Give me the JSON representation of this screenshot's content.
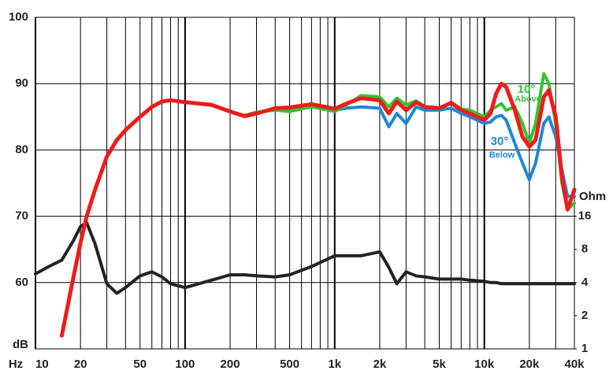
{
  "chart_data": {
    "type": "line",
    "x_label": "Hz",
    "y_label": "dB",
    "y2_label": "Ohm",
    "xscale": "log",
    "y2scale": "log",
    "grid": true,
    "xlim": [
      10,
      40000
    ],
    "ylim": [
      50,
      100
    ],
    "y2lim": [
      1,
      1024
    ],
    "xticks": [
      10,
      20,
      50,
      100,
      200,
      500,
      {
        "value": 1000,
        "label": "1k"
      },
      {
        "value": 2000,
        "label": "2k"
      },
      {
        "value": 5000,
        "label": "5k"
      },
      {
        "value": 10000,
        "label": "10k"
      },
      {
        "value": 20000,
        "label": "20k"
      },
      {
        "value": 40000,
        "label": "40k"
      }
    ],
    "xgrid": [
      10,
      20,
      30,
      40,
      50,
      60,
      70,
      80,
      90,
      100,
      200,
      300,
      400,
      500,
      600,
      700,
      800,
      900,
      1000,
      2000,
      3000,
      4000,
      5000,
      6000,
      7000,
      8000,
      9000,
      10000,
      20000,
      30000,
      40000
    ],
    "yticks": [
      60,
      70,
      80,
      90,
      100
    ],
    "y2ticks": [
      1,
      2,
      4,
      8,
      16
    ],
    "x": [
      10,
      12,
      15,
      18,
      20,
      22,
      25,
      30,
      35,
      40,
      50,
      60,
      70,
      80,
      100,
      150,
      200,
      250,
      300,
      400,
      500,
      700,
      1000,
      1200,
      1500,
      2000,
      2300,
      2600,
      3000,
      3500,
      4000,
      5000,
      6000,
      7000,
      8000,
      10000,
      11000,
      12000,
      13000,
      14000,
      16000,
      18000,
      20000,
      22000,
      25000,
      27000,
      30000,
      33000,
      36000,
      40000
    ],
    "series": [
      {
        "color": "#222222",
        "axis": "y2",
        "values": [
          4.8,
          5.5,
          6.4,
          9.7,
          12.9,
          14,
          9,
          3.9,
          3.2,
          3.6,
          4.6,
          5.0,
          4.5,
          3.9,
          3.6,
          4.2,
          4.7,
          4.7,
          4.6,
          4.5,
          4.7,
          5.6,
          7.0,
          7.0,
          7.0,
          7.6,
          5.5,
          3.9,
          5.0,
          4.6,
          4.5,
          4.3,
          4.3,
          4.3,
          4.2,
          4.1,
          4.0,
          4.0,
          3.9,
          3.9,
          3.9,
          3.9,
          3.9,
          3.9,
          3.9,
          3.9,
          3.9,
          3.9,
          3.9,
          3.9
        ]
      },
      {
        "color": "#1e88d8",
        "values": [
          null,
          null,
          52,
          61,
          66,
          70,
          74,
          79,
          81.5,
          83,
          85,
          86.5,
          87.3,
          87.5,
          87.2,
          86.8,
          85.8,
          85.1,
          85.5,
          86.2,
          86,
          86.5,
          86,
          86.3,
          86.5,
          86.3,
          83.5,
          85.5,
          84,
          86.5,
          86,
          86,
          86.3,
          85.5,
          85,
          84,
          84.2,
          85,
          85.2,
          84.5,
          81,
          78,
          75.5,
          78,
          84,
          85,
          82,
          77,
          73,
          73
        ]
      },
      {
        "color": "#33c433",
        "values": [
          null,
          null,
          52,
          61,
          66,
          70,
          74,
          79,
          81.5,
          83,
          85,
          86.5,
          87.3,
          87.5,
          87.2,
          86.8,
          85.8,
          85.2,
          85.7,
          86,
          85.8,
          86.5,
          85.8,
          86.8,
          88.2,
          88,
          86.5,
          87.8,
          86.8,
          87.4,
          86.5,
          86.3,
          87.2,
          86.2,
          86,
          85,
          86,
          86.5,
          87,
          86,
          86.5,
          84,
          81,
          84,
          91.5,
          90,
          84,
          75,
          71,
          72
        ]
      },
      {
        "color": "#ee1c1c",
        "values": [
          null,
          null,
          52,
          61,
          66,
          70,
          74,
          79,
          81.5,
          83,
          85,
          86.5,
          87.3,
          87.5,
          87.2,
          86.8,
          85.8,
          85.1,
          85.5,
          86.3,
          86.4,
          86.9,
          86.2,
          87,
          87.8,
          87.5,
          85.5,
          87.3,
          86,
          87.2,
          86.5,
          86.3,
          87.1,
          86,
          85.5,
          84.5,
          85.5,
          88.5,
          90,
          89.5,
          86,
          82,
          80.5,
          81.5,
          88,
          89,
          85,
          76,
          71,
          74
        ]
      }
    ],
    "annotations": [
      {
        "text": "10°",
        "color": "#33c433"
      },
      {
        "text": "Above",
        "color": "#33c433"
      },
      {
        "text": "30°",
        "color": "#1e88d8"
      },
      {
        "text": "Below",
        "color": "#1e88d8"
      }
    ]
  }
}
